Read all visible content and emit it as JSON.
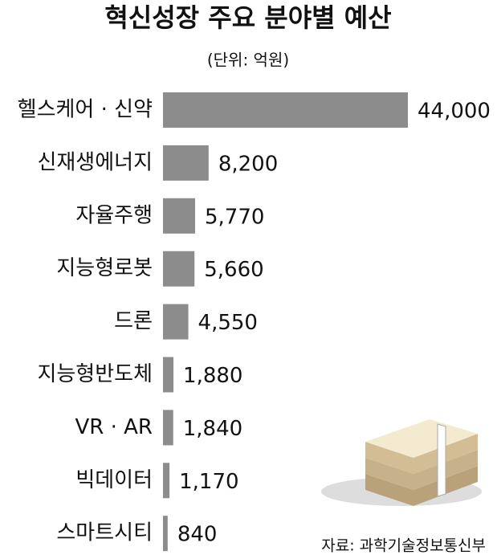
{
  "chart_data": {
    "type": "bar",
    "orientation": "horizontal",
    "title": "혁신성장 주요 분야별 예산",
    "subtitle": "(단위: 억원)",
    "source": "자료: 과학기술정보통신부",
    "categories": [
      "헬스케어 · 신약",
      "신재생에너지",
      "자율주행",
      "지능형로봇",
      "드론",
      "지능형반도체",
      "VR · AR",
      "빅데이터",
      "스마트시티"
    ],
    "values": [
      44000,
      8200,
      5770,
      5660,
      4550,
      1880,
      1840,
      1170,
      840
    ],
    "value_labels": [
      "44,000",
      "8,200",
      "5,770",
      "5,660",
      "4,550",
      "1,880",
      "1,840",
      "1,170",
      "840"
    ],
    "color": "#8c8c8c"
  }
}
